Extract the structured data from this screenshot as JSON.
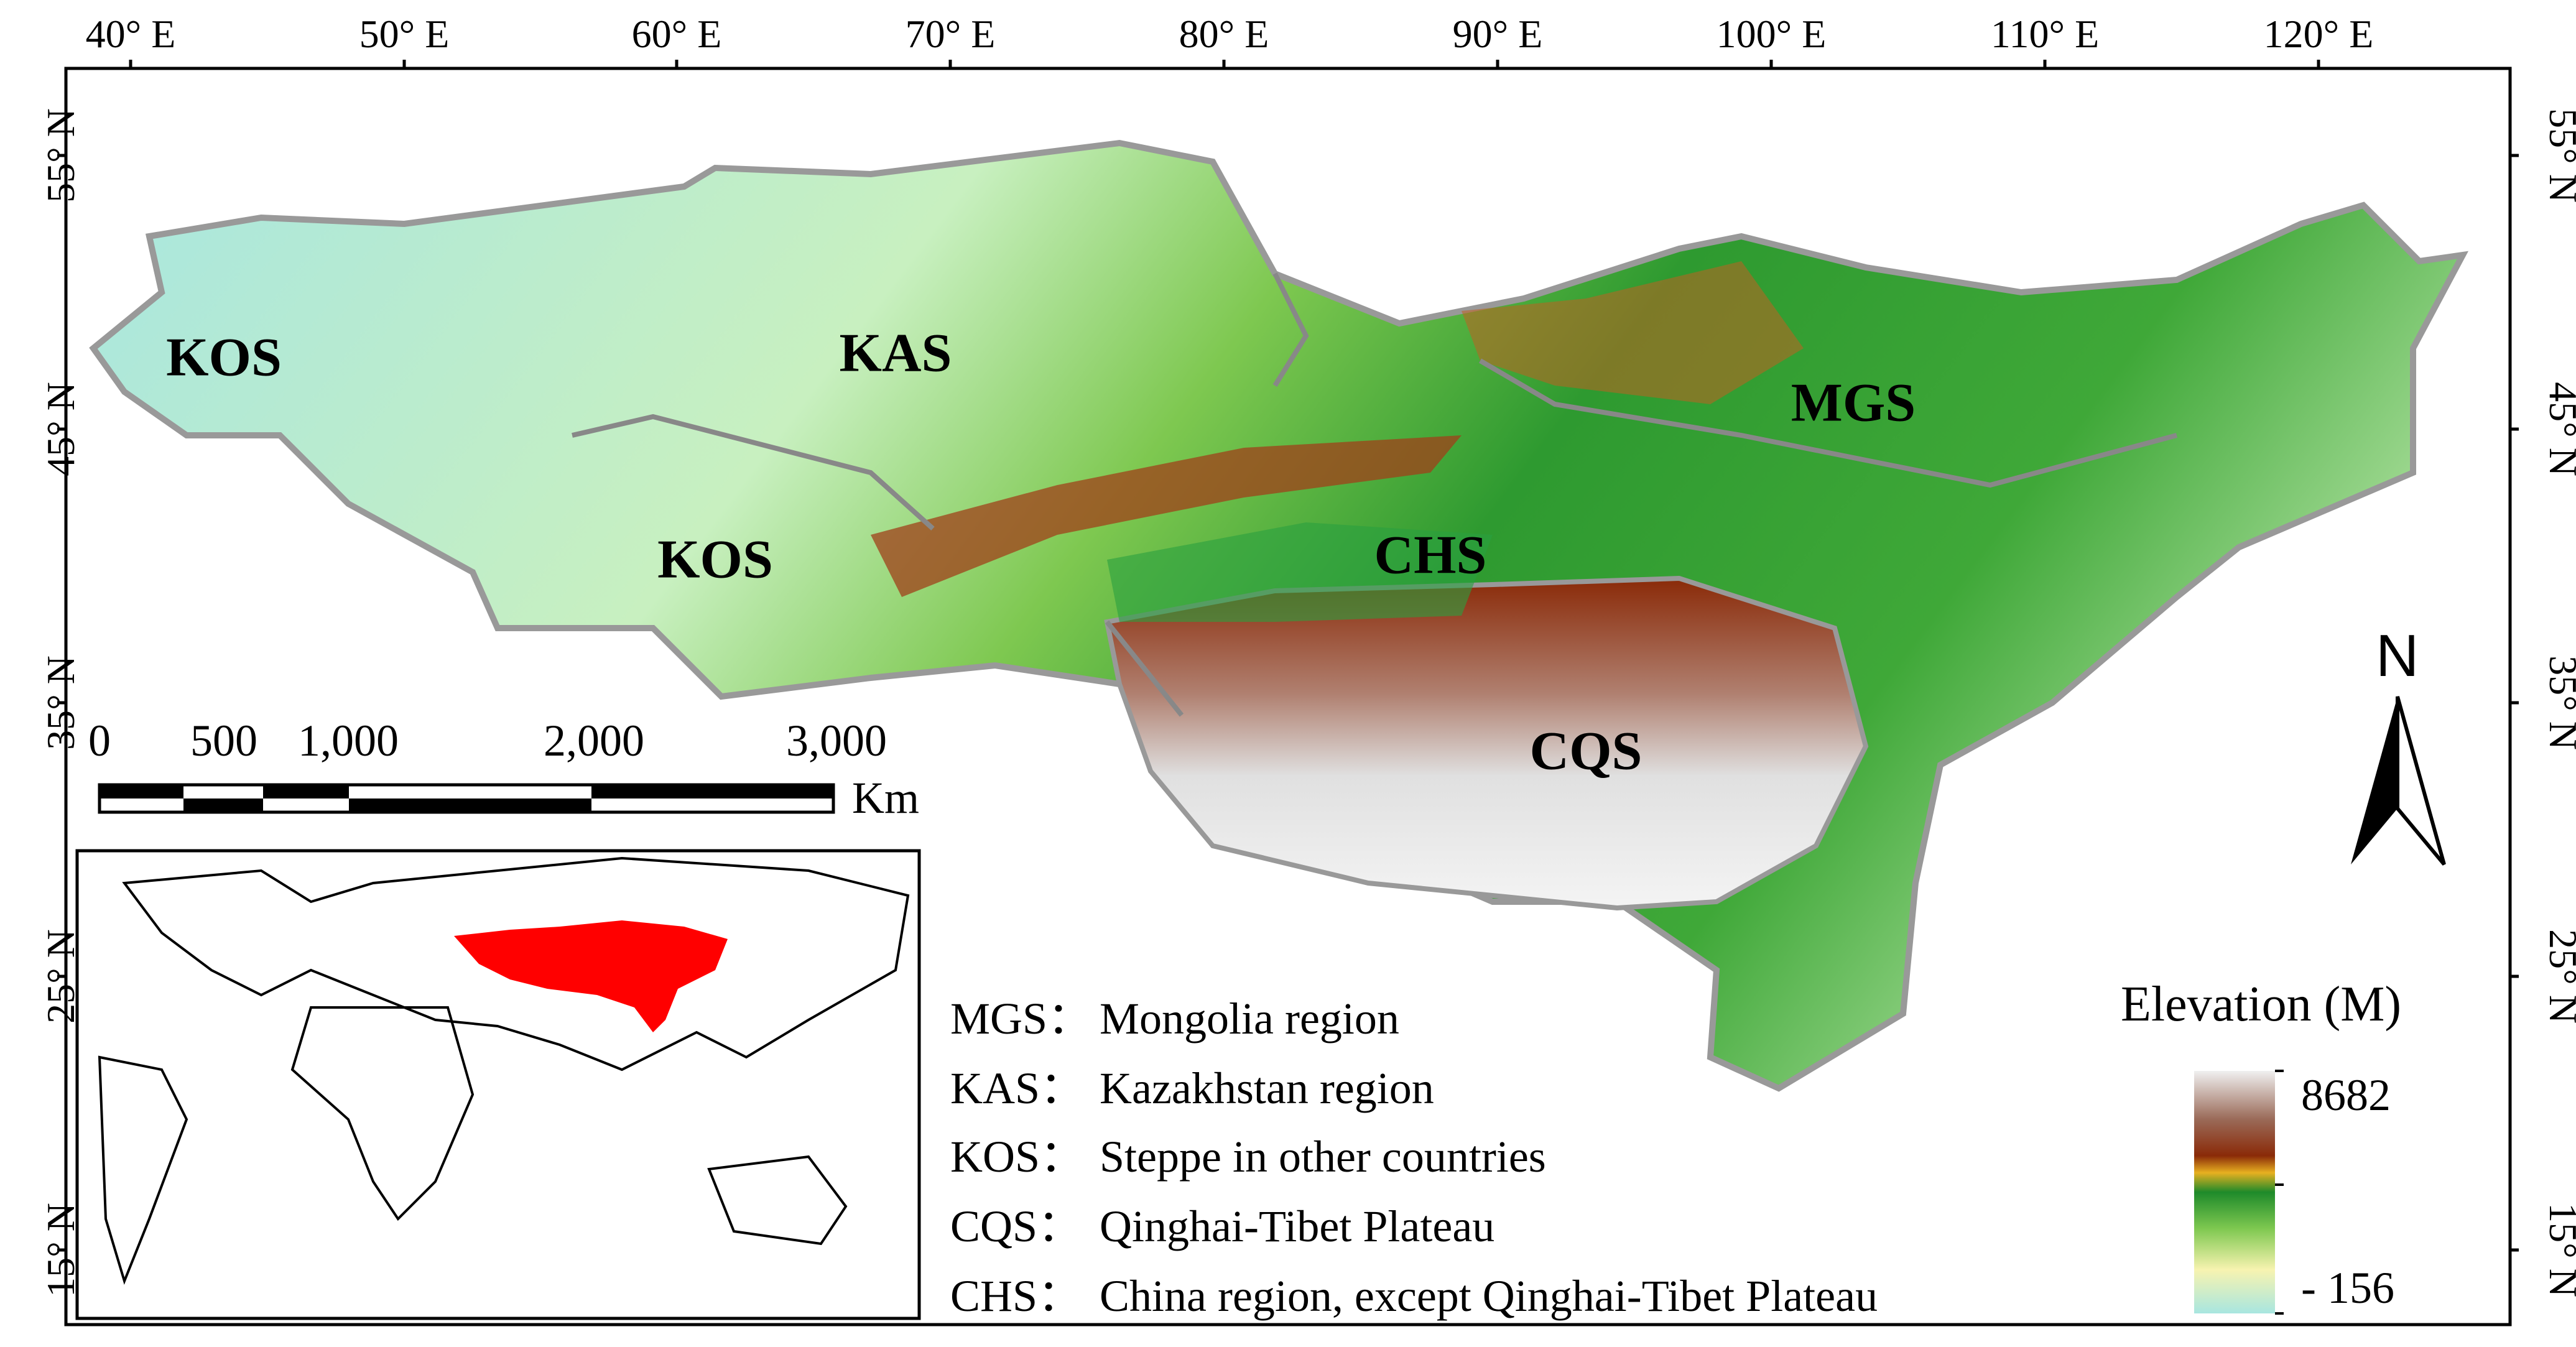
{
  "axes": {
    "longitude_ticks": [
      "40° E",
      "50° E",
      "60° E",
      "70° E",
      "80° E",
      "90° E",
      "100° E",
      "110° E",
      "120° E"
    ],
    "latitude_ticks": [
      "55° N",
      "45° N",
      "35° N",
      "25° N",
      "15° N"
    ]
  },
  "regions": [
    {
      "code": "KOS"
    },
    {
      "code": "KAS"
    },
    {
      "code": "KOS"
    },
    {
      "code": "MGS"
    },
    {
      "code": "CHS"
    },
    {
      "code": "CQS"
    }
  ],
  "scale_bar": {
    "labels": [
      "0",
      "500",
      "1,000",
      "2,000",
      "3,000"
    ],
    "unit": "Km"
  },
  "legend": {
    "items": [
      {
        "code": "MGS：",
        "name": "Mongolia region"
      },
      {
        "code": "KAS：",
        "name": "Kazakhstan  region"
      },
      {
        "code": "KOS：",
        "name": "Steppe in other countries"
      },
      {
        "code": "CQS：",
        "name": "Qinghai-Tibet Plateau"
      },
      {
        "code": "CHS：",
        "name": "China region, except Qinghai-Tibet Plateau"
      }
    ]
  },
  "elevation_legend": {
    "title": "Elevation (M)",
    "max": "8682",
    "min": "- 156",
    "colors": [
      "#a8e6e0",
      "#f7f3b0",
      "#7ec850",
      "#1e8a2a",
      "#e8b020",
      "#8a2a08",
      "#e8e8e8"
    ]
  },
  "north_arrow": {
    "label": "N"
  },
  "inset_map": {
    "highlight_color": "#ff0000"
  }
}
